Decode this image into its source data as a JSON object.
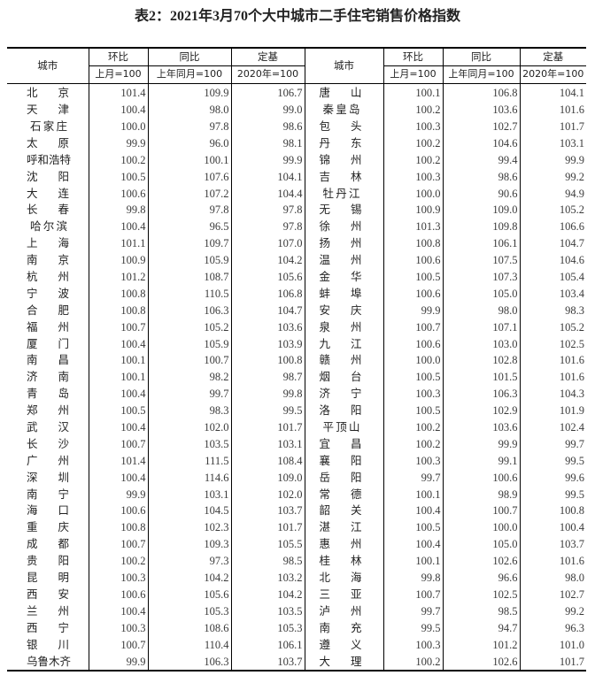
{
  "title": "表2：2021年3月70个大中城市二手住宅销售价格指数",
  "headers": {
    "city": "城市",
    "mom": "环比",
    "yoy": "同比",
    "fixed": "定基",
    "mom_base": "上月=100",
    "yoy_base": "上年同月=100",
    "fixed_base": "2020年=100"
  },
  "left_rows": [
    [
      "北京",
      "101.4",
      "109.9",
      "106.7"
    ],
    [
      "天津",
      "100.4",
      "98.0",
      "99.0"
    ],
    [
      "石家庄",
      "100.0",
      "97.8",
      "98.6"
    ],
    [
      "太原",
      "99.9",
      "96.0",
      "98.1"
    ],
    [
      "呼和浩特",
      "100.2",
      "100.1",
      "99.9"
    ],
    [
      "沈阳",
      "100.5",
      "107.6",
      "104.1"
    ],
    [
      "大连",
      "100.6",
      "107.2",
      "104.4"
    ],
    [
      "长春",
      "99.8",
      "97.8",
      "97.8"
    ],
    [
      "哈尔滨",
      "100.4",
      "96.5",
      "97.8"
    ],
    [
      "上海",
      "101.1",
      "109.7",
      "107.0"
    ],
    [
      "南京",
      "100.9",
      "105.9",
      "104.2"
    ],
    [
      "杭州",
      "101.2",
      "108.7",
      "105.6"
    ],
    [
      "宁波",
      "100.8",
      "110.5",
      "106.8"
    ],
    [
      "合肥",
      "100.8",
      "106.3",
      "104.7"
    ],
    [
      "福州",
      "100.7",
      "105.2",
      "103.6"
    ],
    [
      "厦门",
      "100.4",
      "105.9",
      "103.9"
    ],
    [
      "南昌",
      "100.1",
      "100.7",
      "100.8"
    ],
    [
      "济南",
      "100.1",
      "98.2",
      "98.7"
    ],
    [
      "青岛",
      "100.4",
      "99.7",
      "99.8"
    ],
    [
      "郑州",
      "100.5",
      "98.3",
      "99.5"
    ],
    [
      "武汉",
      "100.4",
      "102.0",
      "101.7"
    ],
    [
      "长沙",
      "100.7",
      "103.5",
      "103.1"
    ],
    [
      "广州",
      "101.4",
      "111.5",
      "108.4"
    ],
    [
      "深圳",
      "100.4",
      "114.6",
      "109.0"
    ],
    [
      "南宁",
      "99.9",
      "103.1",
      "102.0"
    ],
    [
      "海口",
      "100.6",
      "104.5",
      "103.7"
    ],
    [
      "重庆",
      "100.8",
      "102.3",
      "101.7"
    ],
    [
      "成都",
      "100.7",
      "109.3",
      "105.5"
    ],
    [
      "贵阳",
      "100.2",
      "97.3",
      "98.5"
    ],
    [
      "昆明",
      "100.3",
      "104.2",
      "103.2"
    ],
    [
      "西安",
      "100.6",
      "105.6",
      "104.2"
    ],
    [
      "兰州",
      "100.4",
      "105.3",
      "103.5"
    ],
    [
      "西宁",
      "100.3",
      "108.6",
      "105.3"
    ],
    [
      "银川",
      "100.7",
      "110.4",
      "106.1"
    ],
    [
      "乌鲁木齐",
      "99.9",
      "106.3",
      "103.7"
    ]
  ],
  "right_rows": [
    [
      "唐山",
      "100.1",
      "106.8",
      "104.1"
    ],
    [
      "秦皇岛",
      "100.2",
      "103.6",
      "101.6"
    ],
    [
      "包头",
      "100.3",
      "102.7",
      "101.7"
    ],
    [
      "丹东",
      "100.2",
      "104.6",
      "103.1"
    ],
    [
      "锦州",
      "100.2",
      "99.4",
      "99.9"
    ],
    [
      "吉林",
      "100.3",
      "98.6",
      "99.2"
    ],
    [
      "牡丹江",
      "100.0",
      "90.6",
      "94.9"
    ],
    [
      "无锡",
      "100.9",
      "109.0",
      "105.2"
    ],
    [
      "徐州",
      "101.3",
      "109.8",
      "106.6"
    ],
    [
      "扬州",
      "100.8",
      "106.1",
      "104.7"
    ],
    [
      "温州",
      "100.6",
      "107.5",
      "104.6"
    ],
    [
      "金华",
      "100.5",
      "107.3",
      "105.4"
    ],
    [
      "蚌埠",
      "100.6",
      "105.0",
      "103.4"
    ],
    [
      "安庆",
      "99.9",
      "98.0",
      "98.3"
    ],
    [
      "泉州",
      "100.7",
      "107.1",
      "105.2"
    ],
    [
      "九江",
      "100.6",
      "103.0",
      "102.5"
    ],
    [
      "赣州",
      "100.0",
      "102.8",
      "101.6"
    ],
    [
      "烟台",
      "100.5",
      "101.5",
      "101.6"
    ],
    [
      "济宁",
      "100.3",
      "106.3",
      "104.3"
    ],
    [
      "洛阳",
      "100.5",
      "102.9",
      "101.9"
    ],
    [
      "平顶山",
      "100.2",
      "103.6",
      "102.4"
    ],
    [
      "宜昌",
      "100.2",
      "99.9",
      "99.7"
    ],
    [
      "襄阳",
      "100.3",
      "99.1",
      "99.5"
    ],
    [
      "岳阳",
      "99.7",
      "100.6",
      "99.6"
    ],
    [
      "常德",
      "100.1",
      "98.9",
      "99.5"
    ],
    [
      "韶关",
      "100.4",
      "100.7",
      "100.8"
    ],
    [
      "湛江",
      "100.5",
      "100.0",
      "100.4"
    ],
    [
      "惠州",
      "100.4",
      "105.0",
      "103.7"
    ],
    [
      "桂林",
      "100.1",
      "102.6",
      "101.6"
    ],
    [
      "北海",
      "99.8",
      "96.6",
      "98.0"
    ],
    [
      "三亚",
      "100.7",
      "102.5",
      "102.7"
    ],
    [
      "泸州",
      "99.7",
      "98.5",
      "99.2"
    ],
    [
      "南充",
      "99.5",
      "94.7",
      "96.3"
    ],
    [
      "遵义",
      "100.3",
      "101.2",
      "101.0"
    ],
    [
      "大理",
      "100.2",
      "102.6",
      "101.7"
    ]
  ]
}
